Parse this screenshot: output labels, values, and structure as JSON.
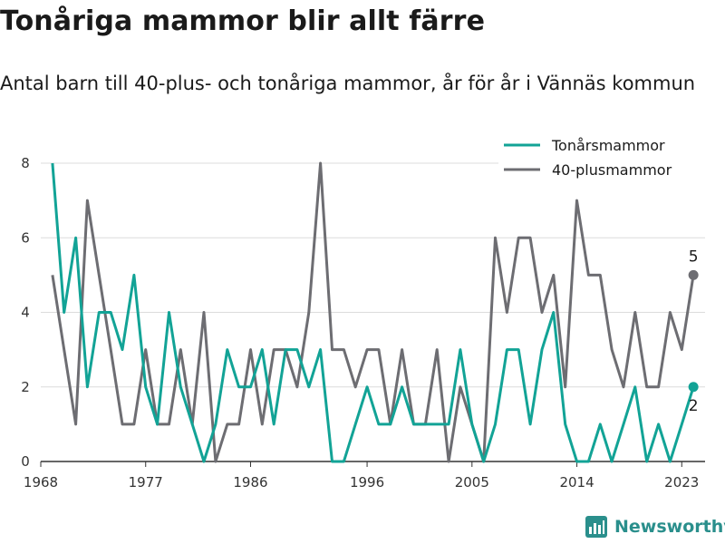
{
  "title": "Tonåriga mammor blir allt färre",
  "subtitle": "Antal barn till 40-plus- och tonåriga mammor, år för år i Vännäs kommun",
  "brand": {
    "name": "Newsworthy"
  },
  "colors": {
    "teen": "#12a396",
    "forty": "#6d6d72",
    "grid": "#dcdcdc",
    "axis": "#333333"
  },
  "chart_data": {
    "type": "line",
    "title": "Tonåriga mammor blir allt färre",
    "subtitle": "Antal barn till 40-plus- och tonåriga mammor, år för år i Vännäs kommun",
    "x": [
      1969,
      1970,
      1971,
      1972,
      1973,
      1974,
      1975,
      1976,
      1977,
      1978,
      1979,
      1980,
      1981,
      1982,
      1983,
      1984,
      1985,
      1986,
      1987,
      1988,
      1989,
      1990,
      1991,
      1992,
      1993,
      1994,
      1995,
      1996,
      1997,
      1998,
      1999,
      2000,
      2001,
      2002,
      2003,
      2004,
      2005,
      2006,
      2007,
      2008,
      2009,
      2010,
      2011,
      2012,
      2013,
      2014,
      2015,
      2016,
      2017,
      2018,
      2019,
      2020,
      2021,
      2022,
      2023,
      2024
    ],
    "x_ticks": [
      1968,
      1977,
      1986,
      1996,
      2005,
      2014,
      2023
    ],
    "y_ticks": [
      0,
      2,
      4,
      6,
      8
    ],
    "xlim": [
      1968,
      2025
    ],
    "ylim": [
      0,
      8
    ],
    "grid": "horizontal",
    "legend_position": "top-right",
    "series": [
      {
        "name": "Tonårsmammor",
        "color": "#12a396",
        "values": [
          8,
          4,
          6,
          2,
          4,
          4,
          3,
          5,
          2,
          1,
          4,
          2,
          1,
          0,
          1,
          3,
          2,
          2,
          3,
          1,
          3,
          3,
          2,
          3,
          0,
          0,
          1,
          2,
          1,
          1,
          2,
          1,
          1,
          1,
          1,
          3,
          1,
          0,
          1,
          3,
          3,
          1,
          3,
          4,
          1,
          0,
          0,
          1,
          0,
          1,
          2,
          0,
          1,
          0,
          1,
          2
        ],
        "end_label": "2"
      },
      {
        "name": "40-plusmammor",
        "color": "#6d6d72",
        "values": [
          5,
          3,
          1,
          7,
          5,
          3,
          1,
          1,
          3,
          1,
          1,
          3,
          1,
          4,
          0,
          1,
          1,
          3,
          1,
          3,
          3,
          2,
          4,
          8,
          3,
          3,
          2,
          3,
          3,
          1,
          3,
          1,
          1,
          3,
          0,
          2,
          1,
          0,
          6,
          4,
          6,
          6,
          4,
          5,
          2,
          7,
          5,
          5,
          3,
          2,
          4,
          2,
          2,
          4,
          3,
          5
        ],
        "end_label": "5"
      }
    ]
  }
}
